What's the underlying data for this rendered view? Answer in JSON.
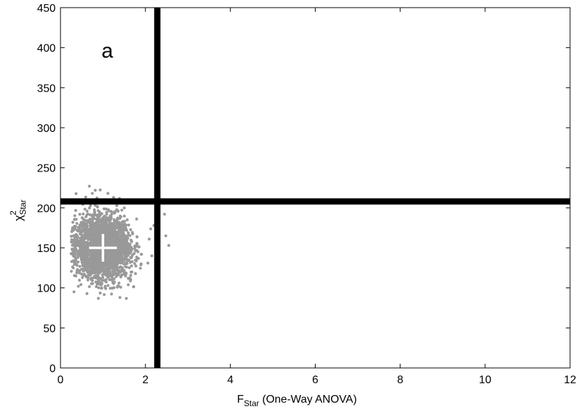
{
  "chart_data": {
    "type": "scatter",
    "panel_label": "a",
    "xlabel": {
      "main": "F",
      "sub": "Star",
      "rest": " (One-Way ANOVA)"
    },
    "ylabel": {
      "main": "χ",
      "sup": "2",
      "sub": "Star"
    },
    "xlim": [
      0,
      12
    ],
    "ylim": [
      0,
      450
    ],
    "xticks": [
      "0",
      "2",
      "4",
      "6",
      "8",
      "10",
      "12"
    ],
    "yticks": [
      "0",
      "50",
      "100",
      "150",
      "200",
      "250",
      "300",
      "350",
      "400",
      "450"
    ],
    "grid": false,
    "threshold_lines": {
      "vertical_x": 2.28,
      "horizontal_y": 208
    },
    "cluster_center": {
      "x": 1.0,
      "y": 150
    },
    "cluster_spread": {
      "x_sd": 0.32,
      "y_sd": 19
    },
    "outlier_points": [
      {
        "x": 0.68,
        "y": 227
      },
      {
        "x": 0.75,
        "y": 218
      },
      {
        "x": 1.25,
        "y": 213
      },
      {
        "x": 2.45,
        "y": 192
      },
      {
        "x": 2.48,
        "y": 165
      },
      {
        "x": 2.55,
        "y": 153
      },
      {
        "x": 2.15,
        "y": 140
      },
      {
        "x": 1.4,
        "y": 88
      },
      {
        "x": 0.3,
        "y": 125
      },
      {
        "x": 2.2,
        "y": 178
      },
      {
        "x": 1.9,
        "y": 130
      }
    ],
    "colors": {
      "points": "#999999",
      "threshold": "#000000",
      "center_marker": "#ffffff"
    }
  }
}
